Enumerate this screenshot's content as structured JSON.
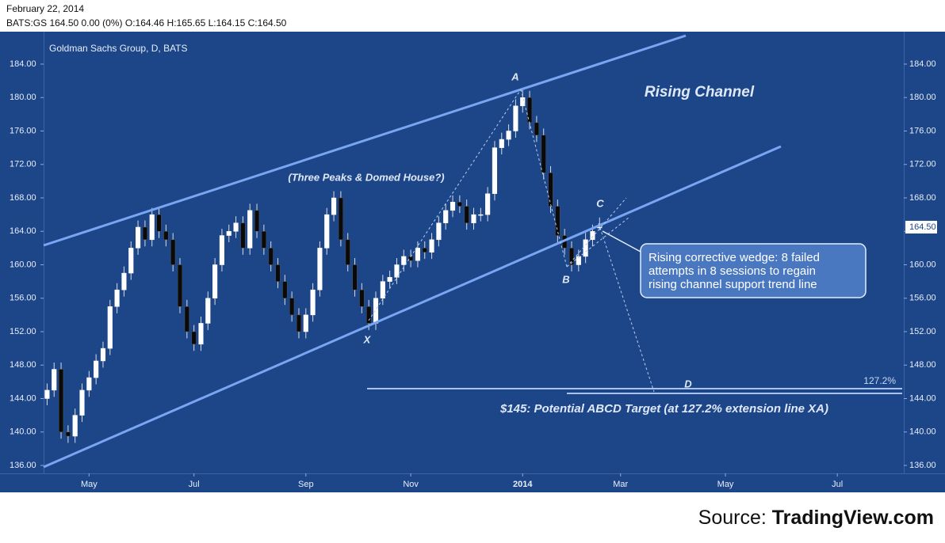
{
  "header": {
    "date": "February 22, 2014",
    "quote": "BATS:GS 164.50 0.00 (0%) O:164.46 H:165.65 L:164.15 C:164.50"
  },
  "source": {
    "prefix": "Source:",
    "brand": "TradingView.com"
  },
  "chart_data": {
    "type": "candlestick",
    "title": "Goldman Sachs Group, D, BATS",
    "annotations": {
      "channel": "Rising Channel",
      "pattern": "(Three Peaks & Domed House?)",
      "a": "A",
      "b": "B",
      "c": "C",
      "d": "D",
      "x": "X",
      "target": "$145: Potential ABCD Target (at 127.2% extension line XA)",
      "extension": "127.2%",
      "callout": [
        "Rising corrective wedge: 8 failed",
        "attempts in 8 sessions to regain",
        "rising channel support trend line"
      ]
    },
    "last_price": {
      "value": 164.5,
      "label": "164.50"
    },
    "colors": {
      "background": "#1d4689",
      "up": "#ffffff",
      "down": "#0a0a0a",
      "wick": "#d8dce6",
      "channel": "#79a6f2"
    },
    "ylim": [
      136,
      184
    ],
    "yticks": [
      {
        "value": 136,
        "label": "136.00"
      },
      {
        "value": 140,
        "label": "140.00"
      },
      {
        "value": 144,
        "label": "144.00"
      },
      {
        "value": 148,
        "label": "148.00"
      },
      {
        "value": 152,
        "label": "152.00"
      },
      {
        "value": 156,
        "label": "156.00"
      },
      {
        "value": 160,
        "label": "160.00"
      },
      {
        "value": 164,
        "label": "164.00"
      },
      {
        "value": 168,
        "label": "168.00"
      },
      {
        "value": 172,
        "label": "172.00"
      },
      {
        "value": 176,
        "label": "176.00"
      },
      {
        "value": 180,
        "label": "180.00"
      },
      {
        "value": 184,
        "label": "184.00"
      }
    ],
    "categories": [
      null,
      null,
      null,
      null,
      null,
      null,
      "May",
      null,
      null,
      null,
      null,
      null,
      null,
      null,
      null,
      null,
      null,
      null,
      null,
      null,
      null,
      "Jul",
      null,
      null,
      null,
      null,
      null,
      null,
      null,
      null,
      null,
      null,
      null,
      null,
      null,
      null,
      null,
      "Sep",
      null,
      null,
      null,
      null,
      null,
      null,
      null,
      null,
      null,
      null,
      null,
      null,
      null,
      null,
      "Nov",
      null,
      null,
      null,
      null,
      null,
      null,
      null,
      null,
      null,
      null,
      null,
      null,
      null,
      null,
      null,
      "2014",
      null,
      null,
      null,
      null,
      null,
      null,
      null,
      null,
      null,
      null,
      null,
      null,
      null,
      "Mar",
      null,
      null,
      null,
      null,
      null,
      null,
      null,
      null,
      null,
      null,
      null,
      null,
      null,
      null,
      "May",
      null,
      null,
      null,
      null,
      null,
      null,
      null,
      null,
      null,
      null,
      null,
      null,
      null,
      null,
      null,
      "Jul",
      null,
      null,
      null,
      null,
      null,
      null,
      null,
      null,
      null
    ],
    "open": [
      144,
      145,
      147.5,
      140,
      139.5,
      142,
      145,
      146.5,
      148.5,
      150,
      155,
      157,
      159,
      162,
      164.5,
      163,
      166,
      164,
      163,
      160,
      155,
      152,
      150.5,
      153,
      156,
      160,
      163.5,
      164,
      165,
      162,
      166.5,
      164,
      162,
      160,
      158,
      156,
      154,
      152,
      154,
      157,
      162,
      166,
      168,
      163,
      160,
      157,
      155,
      153,
      156,
      158,
      158.5,
      160,
      161,
      160.5,
      162,
      161.5,
      163,
      165,
      166.5,
      167.5,
      167,
      165,
      166,
      166,
      168.5,
      174,
      175,
      176,
      179,
      180,
      177,
      175.5,
      171,
      167,
      163.5,
      162,
      160,
      161,
      163,
      164.46,
      null,
      null,
      null,
      null,
      null,
      null,
      null,
      null,
      null,
      null,
      null,
      null,
      null,
      null,
      null,
      null,
      null,
      null,
      null,
      null,
      null,
      null,
      null,
      null,
      null,
      null,
      null,
      null,
      null,
      null,
      null,
      null,
      null,
      null,
      null,
      null,
      null,
      null,
      null,
      null,
      null,
      null,
      null
    ],
    "high": [
      145.8,
      148.3,
      148.3,
      140.8,
      142.8,
      145.8,
      147.3,
      149.3,
      150.8,
      155.8,
      157.8,
      159.8,
      162.8,
      165.3,
      165.3,
      166.8,
      166.8,
      164.8,
      163.8,
      160.8,
      155.8,
      152.8,
      153.8,
      156.8,
      160.8,
      164.3,
      164.8,
      165.8,
      165.8,
      167.3,
      167.3,
      164.8,
      162.8,
      160.8,
      158.8,
      156.8,
      154.8,
      154.8,
      157.8,
      162.8,
      166.8,
      168.8,
      168.8,
      163.8,
      160.8,
      157.8,
      155.8,
      156.8,
      158.8,
      159.3,
      160.8,
      161.8,
      161.8,
      162.8,
      162.8,
      163.8,
      165.8,
      167.3,
      168.3,
      168.3,
      167.8,
      166.8,
      166.8,
      169.3,
      174.8,
      175.8,
      176.8,
      179.8,
      181,
      180.8,
      177.8,
      176.3,
      171.8,
      167.8,
      164.3,
      162.8,
      161.8,
      163.8,
      164.8,
      165.65,
      null,
      null,
      null,
      null,
      null,
      null,
      null,
      null,
      null,
      null,
      null,
      null,
      null,
      null,
      null,
      null,
      null,
      null,
      null,
      null,
      null,
      null,
      null,
      null,
      null,
      null,
      null,
      null,
      null,
      null,
      null,
      null,
      null,
      null,
      null,
      null,
      null,
      null,
      null,
      null,
      null,
      null,
      null
    ],
    "low": [
      143.2,
      144.2,
      139.2,
      138.7,
      138.7,
      141.2,
      144.2,
      145.7,
      147.7,
      149.2,
      154.2,
      156.2,
      158.2,
      161.2,
      162.2,
      162.2,
      163.2,
      162.2,
      159.2,
      154.2,
      151.2,
      149.7,
      149.7,
      152.2,
      155.2,
      159.2,
      162.7,
      163.2,
      161.2,
      161.2,
      163.2,
      161.2,
      159.2,
      157.2,
      155.2,
      153.2,
      151.2,
      151.2,
      153.2,
      156.2,
      161.2,
      165.2,
      162.2,
      159.2,
      156.2,
      154.2,
      152.2,
      152.2,
      155.2,
      157.2,
      157.7,
      159.2,
      159.7,
      159.7,
      160.7,
      160.7,
      162.2,
      164.2,
      165.7,
      166.2,
      164.2,
      164.2,
      165.2,
      165.2,
      167.7,
      173.2,
      174.2,
      175.2,
      178.2,
      176.2,
      174.7,
      170.2,
      166.2,
      162.7,
      161.2,
      159.2,
      159.2,
      160.2,
      162.2,
      164.15,
      null,
      null,
      null,
      null,
      null,
      null,
      null,
      null,
      null,
      null,
      null,
      null,
      null,
      null,
      null,
      null,
      null,
      null,
      null,
      null,
      null,
      null,
      null,
      null,
      null,
      null,
      null,
      null,
      null,
      null,
      null,
      null,
      null,
      null,
      null,
      null,
      null,
      null,
      null,
      null,
      null,
      null,
      null
    ],
    "close": [
      145,
      147.5,
      140,
      139.5,
      142,
      145,
      146.5,
      148.5,
      150,
      155,
      157,
      159,
      162,
      164.5,
      163,
      166,
      164,
      163,
      160,
      155,
      152,
      150.5,
      153,
      156,
      160,
      163.5,
      164,
      165,
      162,
      166.5,
      164,
      162,
      160,
      158,
      156,
      154,
      152,
      154,
      157,
      162,
      166,
      168,
      163,
      160,
      157,
      155,
      153,
      156,
      158,
      158.5,
      160,
      161,
      160.5,
      162,
      161.5,
      163,
      165,
      166.5,
      167.5,
      167,
      165,
      166,
      166,
      168.5,
      174,
      175,
      176,
      179,
      180,
      177,
      175.5,
      171,
      167,
      163.5,
      162,
      160,
      161,
      163,
      164,
      164.5,
      null,
      null,
      null,
      null,
      null,
      null,
      null,
      null,
      null,
      null,
      null,
      null,
      null,
      null,
      null,
      null,
      null,
      null,
      null,
      null,
      null,
      null,
      null,
      null,
      null,
      null,
      null,
      null,
      null,
      null,
      null,
      null,
      null,
      null,
      null,
      null,
      null,
      null,
      null,
      null,
      null,
      null,
      null
    ]
  }
}
